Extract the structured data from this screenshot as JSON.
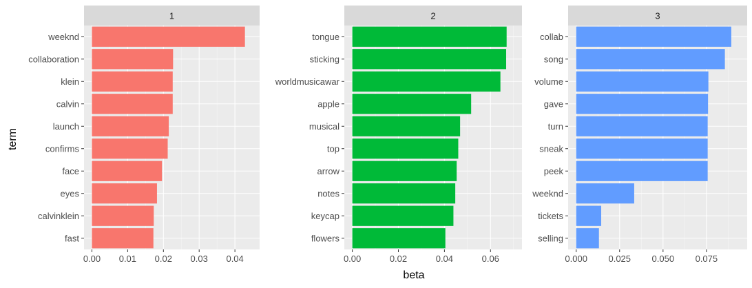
{
  "chart_data": {
    "type": "bar",
    "orientation": "horizontal",
    "xlabel": "beta",
    "ylabel": "term",
    "grid": true,
    "legend": "none",
    "panels": [
      {
        "strip": "1",
        "color": "#F8766D",
        "xlim": [
          0,
          0.0447
        ],
        "xticks": [
          0.0,
          0.01,
          0.02,
          0.03,
          0.04
        ],
        "xtick_labels": [
          "0.00",
          "0.01",
          "0.02",
          "0.03",
          "0.04"
        ],
        "categories": [
          "weeknd",
          "collaboration",
          "klein",
          "calvin",
          "launch",
          "confirms",
          "face",
          "eyes",
          "calvinklein",
          "fast"
        ],
        "values": [
          0.0428,
          0.0227,
          0.0226,
          0.0226,
          0.0215,
          0.0212,
          0.0196,
          0.0182,
          0.0173,
          0.0172
        ]
      },
      {
        "strip": "2",
        "color": "#00BA38",
        "xlim": [
          0,
          0.0702
        ],
        "xticks": [
          0.0,
          0.02,
          0.04,
          0.06
        ],
        "xtick_labels": [
          "0.00",
          "0.02",
          "0.04",
          "0.06"
        ],
        "categories": [
          "tongue",
          "sticking",
          "worldmusicawar",
          "apple",
          "musical",
          "top",
          "arrow",
          "notes",
          "keycap",
          "flowers"
        ],
        "values": [
          0.067,
          0.0668,
          0.0643,
          0.0516,
          0.0468,
          0.046,
          0.0453,
          0.0447,
          0.0439,
          0.0404
        ]
      },
      {
        "strip": "3",
        "color": "#619CFF",
        "xlim": [
          0,
          0.0938
        ],
        "xticks": [
          0.0,
          0.025,
          0.05,
          0.075
        ],
        "xtick_labels": [
          "0.000",
          "0.025",
          "0.050",
          "0.075"
        ],
        "categories": [
          "collab",
          "song",
          "volume",
          "gave",
          "turn",
          "sneak",
          "peek",
          "weeknd",
          "tickets",
          "selling"
        ],
        "values": [
          0.0893,
          0.0856,
          0.0761,
          0.0759,
          0.0757,
          0.0757,
          0.0757,
          0.0334,
          0.0144,
          0.0131
        ]
      }
    ]
  }
}
